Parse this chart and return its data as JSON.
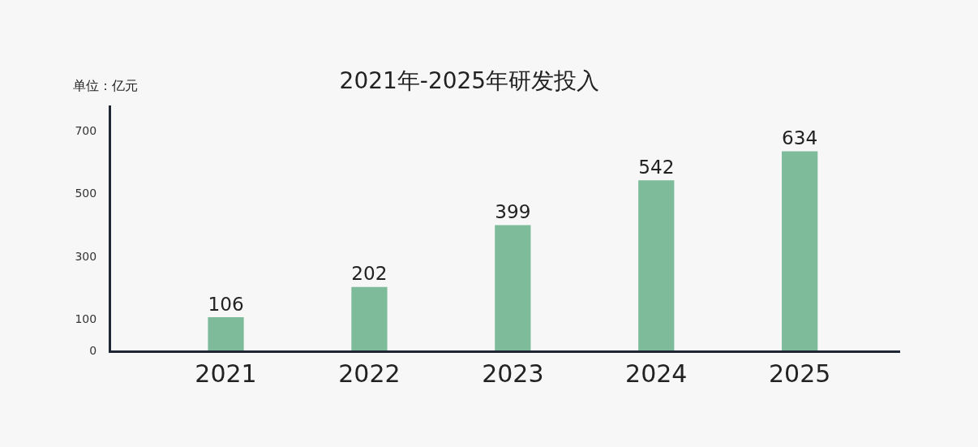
{
  "chart_data": {
    "type": "bar",
    "title": "2021年-2025年研发投入",
    "ylabel": "单位：亿元",
    "categories": [
      "2021",
      "2022",
      "2023",
      "2024",
      "2025"
    ],
    "values": [
      106,
      202,
      399,
      542,
      634
    ],
    "color": "#7dbb9b",
    "ylim": [
      0,
      780
    ],
    "yticks": [
      0,
      100,
      300,
      500,
      700
    ],
    "grid": false,
    "data_labels": true
  }
}
